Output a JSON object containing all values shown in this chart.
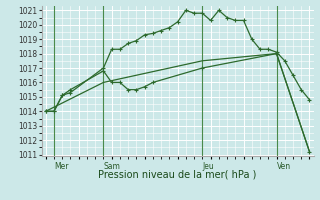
{
  "title": "Pression niveau de la mer( hPa )",
  "bg_color": "#cce8e8",
  "grid_color": "#ffffff",
  "line_color": "#2d6a2d",
  "ylim": [
    1011,
    1021
  ],
  "yticks": [
    1011,
    1012,
    1013,
    1014,
    1015,
    1016,
    1017,
    1018,
    1019,
    1020,
    1021
  ],
  "xlim": [
    0,
    32
  ],
  "day_labels": [
    "Mer",
    "Sam",
    "Jeu",
    "Ven"
  ],
  "day_positions": [
    1,
    7,
    19,
    28
  ],
  "series1_x": [
    0,
    1,
    2,
    3,
    7,
    8,
    9,
    10,
    11,
    12,
    13,
    14,
    15,
    16,
    17,
    18,
    19,
    20,
    21,
    22,
    23,
    24,
    25,
    26,
    27,
    28,
    29,
    30,
    31,
    32
  ],
  "series1_y": [
    1014.0,
    1014.0,
    1015.1,
    1015.3,
    1017.0,
    1018.3,
    1018.3,
    1018.7,
    1018.9,
    1019.3,
    1019.4,
    1019.6,
    1019.8,
    1020.2,
    1021.0,
    1020.8,
    1020.8,
    1020.3,
    1021.0,
    1020.5,
    1020.3,
    1020.3,
    1019.0,
    1018.3,
    1018.3,
    1018.1,
    1017.5,
    1016.5,
    1015.5,
    1014.8
  ],
  "series2_x": [
    0,
    1,
    2,
    3,
    7,
    8,
    9,
    10,
    11,
    12,
    13,
    19,
    28,
    32
  ],
  "series2_y": [
    1014.0,
    1014.0,
    1015.1,
    1015.5,
    1016.8,
    1016.0,
    1016.0,
    1015.5,
    1015.5,
    1015.7,
    1016.0,
    1017.0,
    1018.0,
    1011.2
  ],
  "series3_x": [
    0,
    7,
    19,
    28,
    32
  ],
  "series3_y": [
    1014.0,
    1016.0,
    1017.5,
    1018.0,
    1011.2
  ],
  "vline_positions": [
    1,
    7,
    19,
    28
  ],
  "vline_color": "#4a8a4a",
  "title_fontsize": 7,
  "tick_fontsize": 5.5,
  "day_fontsize": 5.5
}
